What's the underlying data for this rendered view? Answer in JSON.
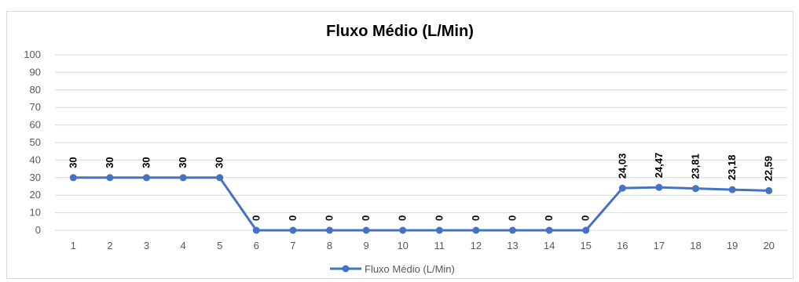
{
  "chart_data": {
    "type": "line",
    "title": "Fluxo Médio (L/Min)",
    "xlabel": "",
    "ylabel": "",
    "ylim": [
      0,
      100
    ],
    "yticks": [
      "0",
      "10",
      "20",
      "30",
      "40",
      "50",
      "60",
      "70",
      "80",
      "90",
      "100"
    ],
    "categories": [
      "1",
      "2",
      "3",
      "4",
      "5",
      "6",
      "7",
      "8",
      "9",
      "10",
      "11",
      "12",
      "13",
      "14",
      "15",
      "16",
      "17",
      "18",
      "19",
      "20"
    ],
    "series": [
      {
        "name": "Fluxo Médio (L/Min)",
        "values": [
          30,
          30,
          30,
          30,
          30,
          0,
          0,
          0,
          0,
          0,
          0,
          0,
          0,
          0,
          0,
          24.03,
          24.47,
          23.81,
          23.18,
          22.59
        ],
        "labels": [
          "30",
          "30",
          "30",
          "30",
          "30",
          "0",
          "0",
          "0",
          "0",
          "0",
          "0",
          "0",
          "0",
          "0",
          "0",
          "24,03",
          "24,47",
          "23,81",
          "23,18",
          "22,59"
        ],
        "color": "#4472c4"
      }
    ],
    "grid": true,
    "legend": "bottom"
  }
}
